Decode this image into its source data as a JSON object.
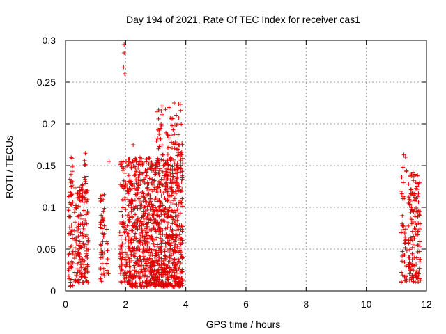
{
  "chart_data": {
    "type": "scatter",
    "title": "Day 194 of 2021, Rate Of TEC Index for receiver cas1",
    "xlabel": "GPS time / hours",
    "ylabel": "ROTI / TECUs",
    "xlim": [
      0,
      12
    ],
    "ylim": [
      0,
      0.3
    ],
    "x_ticks": [
      0,
      2,
      4,
      6,
      8,
      10,
      12
    ],
    "x_tick_labels": [
      "0",
      "2",
      "4",
      "6",
      "8",
      "10",
      "12"
    ],
    "y_ticks": [
      0,
      0.05,
      0.1,
      0.15,
      0.2,
      0.25,
      0.3
    ],
    "y_tick_labels": [
      "0",
      "0.05",
      "0.1",
      "0.15",
      "0.2",
      "0.25",
      "0.3"
    ],
    "grid": true,
    "marker": "+",
    "marker_color": "#e00000",
    "clusters": [
      {
        "x_range": [
          0.1,
          0.25
        ],
        "y_range": [
          0.005,
          0.16
        ],
        "count": 60
      },
      {
        "x_range": [
          0.3,
          0.75
        ],
        "y_range": [
          0.01,
          0.13
        ],
        "count": 180
      },
      {
        "x_range": [
          0.6,
          0.7
        ],
        "y_range": [
          0.13,
          0.175
        ],
        "count": 8
      },
      {
        "x_range": [
          1.15,
          1.3
        ],
        "y_range": [
          0.01,
          0.12
        ],
        "count": 45
      },
      {
        "x_range": [
          1.35,
          1.45
        ],
        "y_range": [
          0.02,
          0.085
        ],
        "count": 12
      },
      {
        "x_range": [
          1.8,
          2.1
        ],
        "y_range": [
          0.01,
          0.16
        ],
        "count": 110
      },
      {
        "x_range": [
          2.1,
          3.9
        ],
        "y_range": [
          0.005,
          0.16
        ],
        "count": 1100
      },
      {
        "x_range": [
          3.0,
          3.9
        ],
        "y_range": [
          0.15,
          0.225
        ],
        "count": 90
      }
    ],
    "extra_points": [
      {
        "x": 1.95,
        "y": 0.295
      },
      {
        "x": 1.95,
        "y": 0.285
      },
      {
        "x": 1.93,
        "y": 0.268
      },
      {
        "x": 1.97,
        "y": 0.26
      },
      {
        "x": 1.45,
        "y": 0.155
      },
      {
        "x": 2.15,
        "y": 0.13
      },
      {
        "x": 2.25,
        "y": 0.175
      },
      {
        "x": 11.25,
        "y": 0.163
      },
      {
        "x": 11.3,
        "y": 0.16
      },
      {
        "x": 11.55,
        "y": 0.142
      },
      {
        "x": 11.5,
        "y": 0.14
      }
    ],
    "late_clusters": [
      {
        "x_range": [
          11.15,
          11.35
        ],
        "y_range": [
          0.01,
          0.15
        ],
        "count": 45
      },
      {
        "x_range": [
          11.4,
          11.8
        ],
        "y_range": [
          0.01,
          0.14
        ],
        "count": 150
      }
    ]
  }
}
